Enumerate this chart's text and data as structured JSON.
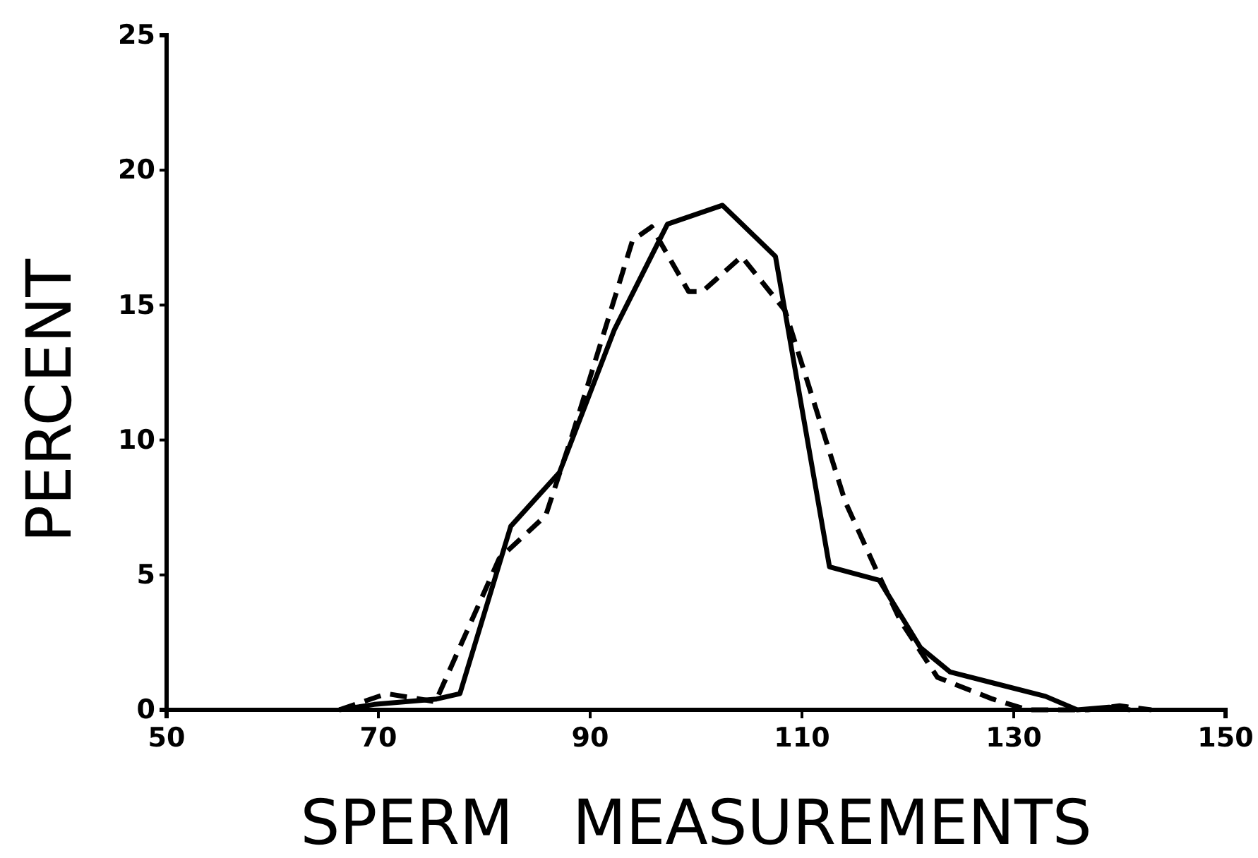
{
  "chart_data": {
    "type": "line",
    "xlabel": "SPERM   MEASUREMENTS",
    "ylabel": "PERCENT",
    "xlim": [
      50,
      150
    ],
    "ylim": [
      0,
      25
    ],
    "xticks": [
      50,
      70,
      90,
      110,
      130,
      150
    ],
    "yticks": [
      0,
      5,
      10,
      15,
      20,
      25
    ],
    "grid": false,
    "marker": "none",
    "series": [
      {
        "color": "#000000",
        "line_style": "solid",
        "x": [
          66.3,
          69.6,
          75.5,
          77.7,
          82.5,
          87.1,
          92.3,
          97.3,
          102.5,
          107.5,
          112.6,
          117.3,
          121.2,
          124,
          128,
          133,
          136,
          139,
          141
        ],
        "values": [
          0,
          0.2,
          0.4,
          0.6,
          6.8,
          8.8,
          14.1,
          18.0,
          18.7,
          16.8,
          5.3,
          4.8,
          2.3,
          1.4,
          1.0,
          0.5,
          0,
          0.1,
          0
        ]
      },
      {
        "color": "#000000",
        "line_style": "dashed",
        "x": [
          66.3,
          70.8,
          75.4,
          81.4,
          85.8,
          88.4,
          94.0,
          95.8,
          99.3,
          100.6,
          104.3,
          108.4,
          114.1,
          117.0,
          119.3,
          122.8,
          128,
          131.3,
          137,
          140,
          143
        ],
        "values": [
          0,
          0.6,
          0.3,
          5.6,
          7.2,
          10.3,
          17.4,
          17.9,
          15.5,
          15.5,
          16.8,
          14.8,
          7.7,
          5.2,
          3.3,
          1.2,
          0.4,
          0,
          0,
          0.15,
          0
        ]
      }
    ]
  }
}
